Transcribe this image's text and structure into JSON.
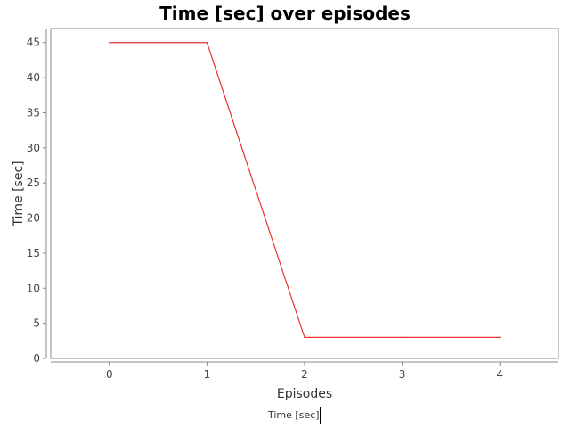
{
  "chart_data": {
    "type": "line",
    "title": "Time [sec] over episodes",
    "xlabel": "Episodes",
    "ylabel": "Time [sec]",
    "x": [
      0,
      1,
      2,
      3,
      4
    ],
    "series": [
      {
        "name": "Time [sec]",
        "values": [
          45,
          45,
          3,
          3,
          3
        ],
        "color": "#e8322f"
      }
    ],
    "xlim": [
      -0.6,
      4.6
    ],
    "ylim": [
      0,
      47
    ],
    "xticks": [
      "0",
      "1",
      "2",
      "3",
      "4"
    ],
    "yticks": [
      "0",
      "5",
      "10",
      "15",
      "20",
      "25",
      "30",
      "35",
      "40",
      "45"
    ],
    "grid": false,
    "legend_position": "bottom-center"
  }
}
